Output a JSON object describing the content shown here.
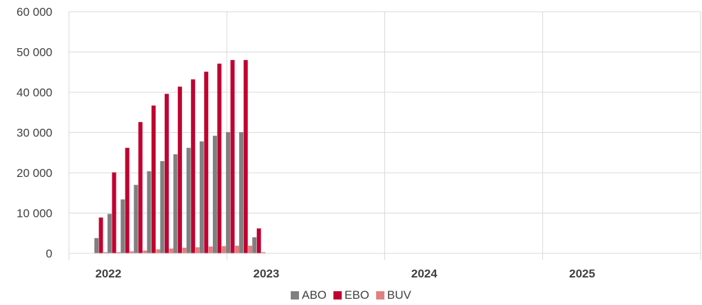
{
  "chart_data": {
    "type": "bar",
    "title": "",
    "xlabel": "",
    "ylabel": "",
    "ylim": [
      0,
      60000
    ],
    "yticks": [
      "0",
      "10 000",
      "20 000",
      "30 000",
      "40 000",
      "50 000",
      "60 000"
    ],
    "yticks_values": [
      0,
      10000,
      20000,
      30000,
      40000,
      50000,
      60000
    ],
    "xaxis_labels": [
      "2022",
      "2023",
      "2024",
      "2025"
    ],
    "grid": true,
    "legend_position": "bottom",
    "categories": [
      "2022-01",
      "2022-02",
      "2022-03",
      "2022-04",
      "2022-05",
      "2022-06",
      "2022-07",
      "2022-08",
      "2022-09",
      "2022-10",
      "2022-11",
      "2022-12",
      "2023-01"
    ],
    "series": [
      {
        "name": "ABO",
        "color": "#808080",
        "values": [
          3800,
          9800,
          13400,
          17000,
          20400,
          22900,
          24600,
          26200,
          27800,
          29200,
          30100,
          30100,
          4000
        ]
      },
      {
        "name": "EBO",
        "color": "#c00030",
        "values": [
          8900,
          20100,
          26200,
          32600,
          36700,
          39600,
          41400,
          43200,
          45100,
          47100,
          48000,
          48000,
          6200
        ]
      },
      {
        "name": "BUV",
        "color": "#e08080",
        "values": [
          300,
          300,
          500,
          700,
          1000,
          1200,
          1400,
          1500,
          1700,
          1800,
          1900,
          1900,
          300
        ]
      }
    ]
  }
}
